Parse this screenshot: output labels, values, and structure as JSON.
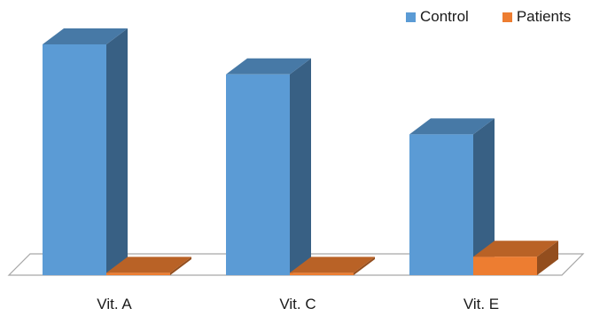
{
  "chart_data": {
    "type": "bar",
    "categories": [
      "Vit. A",
      "Vit. C",
      "Vit. E"
    ],
    "series": [
      {
        "name": "Control",
        "values": [
          100,
          87,
          61
        ],
        "color": "#5b9bd5"
      },
      {
        "name": "Patients",
        "values": [
          1,
          1,
          8
        ],
        "color": "#ed7d31"
      }
    ],
    "ylim": [
      0,
      100
    ],
    "grid": false,
    "legend_position": "top-right",
    "style": "3d-clustered-column"
  }
}
